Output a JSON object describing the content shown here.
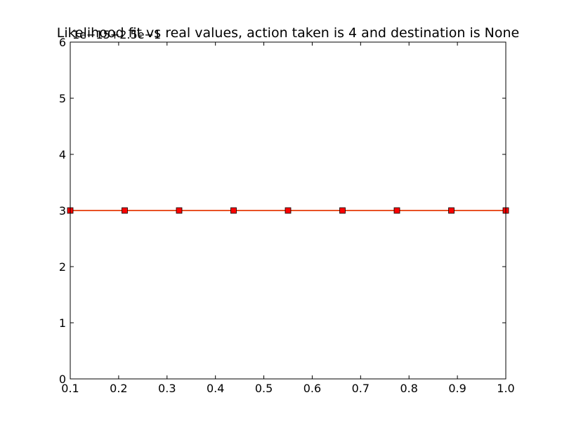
{
  "chart_data": {
    "type": "line",
    "title": "Likelihood fit vs real values, action taken is 4 and destination is None",
    "y_offset_label": "1e−15+2.5e−1",
    "xlabel": "",
    "ylabel": "",
    "xlim": [
      0.1,
      1.0
    ],
    "ylim": [
      0,
      6
    ],
    "x_ticks": [
      "0.1",
      "0.2",
      "0.3",
      "0.4",
      "0.5",
      "0.6",
      "0.7",
      "0.8",
      "0.9",
      "1.0"
    ],
    "y_ticks": [
      "0",
      "1",
      "2",
      "3",
      "4",
      "5",
      "6"
    ],
    "grid": false,
    "series": [
      {
        "color": "#ff0000",
        "line_color": "#4a5a2a",
        "marker": "square",
        "x": [
          0.1,
          0.2125,
          0.325,
          0.4375,
          0.55,
          0.6625,
          0.775,
          0.8875,
          1.0
        ],
        "y": [
          3,
          3,
          3,
          3,
          3,
          3,
          3,
          3,
          3
        ]
      },
      {
        "color": "#ff3300",
        "marker": "none",
        "x": [
          0.1,
          1.0
        ],
        "y": [
          3,
          3
        ]
      }
    ]
  }
}
